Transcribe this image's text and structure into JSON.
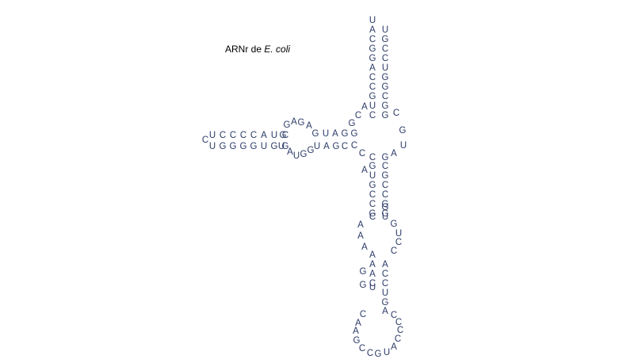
{
  "title": {
    "prefix": "ARNr de ",
    "organism": "E. coli"
  },
  "colors": {
    "nucleotide": "#2b3a67",
    "title": "#000000"
  },
  "nucleotide_groups": [
    {
      "name": "top-stem-left-strand",
      "seq": "UACGGACCGUC"
    },
    {
      "name": "top-stem-right-strand",
      "seq": "UGCCUGGCGG"
    },
    {
      "name": "central-loop-upper-left",
      "seq": "ACG"
    },
    {
      "name": "central-loop-right",
      "seq": "CGUA"
    },
    {
      "name": "central-loop-lower-left",
      "seq": "CC"
    },
    {
      "name": "left-arm-upper-strand",
      "seq": "UCCCCAUGC"
    },
    {
      "name": "left-arm-upper-bulge",
      "seq": "GAGA"
    },
    {
      "name": "left-arm-upper-junction",
      "seq": "GUAGG"
    },
    {
      "name": "left-arm-terminal",
      "seq": "C"
    },
    {
      "name": "left-arm-lower-strand",
      "seq": "UGGGGUGUG"
    },
    {
      "name": "left-arm-lower-bulge",
      "seq": "AUGG"
    },
    {
      "name": "left-arm-lower-junction",
      "seq": "UAGC"
    },
    {
      "name": "middle-stem-left-strand",
      "seq": "CAGUGCCGC"
    },
    {
      "name": "middle-stem-right-strand",
      "seq": "GCGCCGGUG"
    },
    {
      "name": "internal-loop-left",
      "seq": "AAA"
    },
    {
      "name": "internal-loop-right",
      "seq": "GUCC"
    },
    {
      "name": "lower-stem-left-strand",
      "seq": "AGAGACU"
    },
    {
      "name": "lower-stem-right-strand",
      "seq": "ACCUGA"
    },
    {
      "name": "hairpin-loop",
      "seq": "CAAGCCGUACCCC"
    }
  ]
}
